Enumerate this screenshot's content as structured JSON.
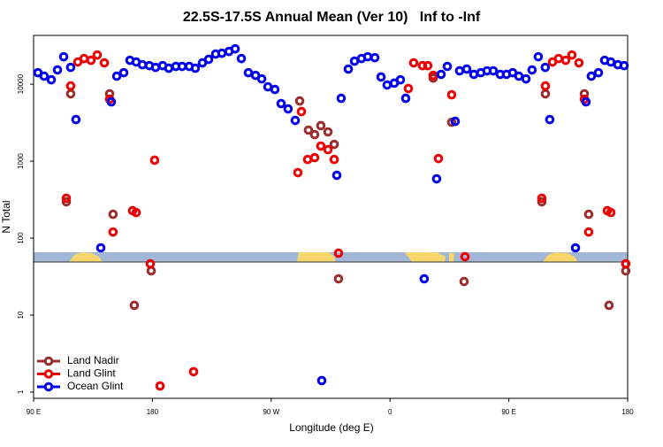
{
  "chart_data": {
    "type": "scatter",
    "title": "22.5S-17.5S Annual Mean (Ver 10)   Inf to -Inf",
    "x_label": "Longitude (deg E)",
    "y_label": "N Total",
    "log_y": true,
    "legend": "bottom-left",
    "xlim": [
      90,
      540
    ],
    "xticks": [
      {
        "value": 90,
        "label": "90 E"
      },
      {
        "value": 180,
        "label": "180"
      },
      {
        "value": 270,
        "label": "90 W"
      },
      {
        "value": 360,
        "label": "0"
      },
      {
        "value": 450,
        "label": "90 E"
      },
      {
        "value": 540,
        "label": "180"
      }
    ],
    "ylim": [
      0.83,
      43000
    ],
    "yticks": [
      1,
      10,
      100,
      1000,
      10000
    ],
    "series": [
      {
        "name": "Land Nadir",
        "color": "#9b2d2d",
        "x": [
          114.8,
          118.1,
          147.6,
          150.2,
          166.3,
          179.1,
          291.6,
          298.2,
          302.9,
          307.6,
          313.0,
          317.7,
          321.0,
          392.7,
          406.7,
          416.1,
          475.0,
          477.7,
          507.2,
          510.5,
          525.9,
          538.6
        ],
        "values": [
          296,
          7480,
          7480,
          204,
          13.4,
          37.6,
          6050,
          2530,
          2210,
          2890,
          2400,
          1650,
          29.6,
          12000,
          3200,
          27.3,
          296,
          7480,
          7480,
          204,
          13.4,
          37.6
        ]
      },
      {
        "name": "Land Glint",
        "color": "#ee0000",
        "x": [
          114.8,
          118.1,
          123.5,
          128.2,
          133.5,
          138.2,
          143.6,
          147.6,
          150.2,
          165.0,
          167.7,
          178.4,
          181.7,
          185.8,
          211.2,
          290.2,
          292.9,
          297.6,
          302.9,
          307.6,
          313.0,
          317.7,
          321.0,
          373.9,
          377.9,
          384.6,
          388.6,
          392.7,
          396.7,
          406.7,
          416.8,
          475.0,
          477.7,
          483.1,
          487.7,
          493.1,
          497.8,
          503.1,
          507.2,
          510.5,
          524.6,
          527.3,
          538.6
        ],
        "values": [
          329,
          9480,
          19400,
          21500,
          20400,
          23900,
          18900,
          6380,
          120,
          227,
          215,
          46.4,
          1030,
          1.2,
          1.84,
          709,
          4400,
          1050,
          1110,
          1570,
          1410,
          1050,
          63.8,
          8770,
          18900,
          17400,
          17400,
          13000,
          1080,
          7280,
          57.4,
          329,
          9480,
          19400,
          21500,
          20400,
          23900,
          18900,
          6380,
          120,
          227,
          215,
          46.4
        ]
      },
      {
        "name": "Ocean Glint",
        "color": "#0000ee",
        "x": [
          93.3,
          98.0,
          103.4,
          108.1,
          112.8,
          118.1,
          122.1,
          140.9,
          148.9,
          153.0,
          158.3,
          163.0,
          167.7,
          172.4,
          177.7,
          182.4,
          187.8,
          192.4,
          197.8,
          202.5,
          207.9,
          212.5,
          217.9,
          222.6,
          227.9,
          232.6,
          238.0,
          242.7,
          247.4,
          252.7,
          258.1,
          262.8,
          267.5,
          272.8,
          277.5,
          282.8,
          288.2,
          308.3,
          319.7,
          323.0,
          328.4,
          333.1,
          338.4,
          343.1,
          348.5,
          353.2,
          357.8,
          363.2,
          367.9,
          371.9,
          385.9,
          395.3,
          398.7,
          403.4,
          409.4,
          412.7,
          418.1,
          423.5,
          428.8,
          433.5,
          438.2,
          443.5,
          448.2,
          452.9,
          457.6,
          463.0,
          467.6,
          472.3,
          477.6,
          481.0,
          500.5,
          508.5,
          512.5,
          517.9,
          522.6,
          527.3,
          532.6,
          537.3
        ],
        "values": [
          14100,
          12700,
          11400,
          15300,
          22700,
          16500,
          3470,
          74.8,
          5890,
          12700,
          14100,
          20400,
          19400,
          17900,
          17400,
          16500,
          17400,
          16100,
          17000,
          17000,
          17000,
          16100,
          18900,
          21000,
          24600,
          25200,
          26600,
          28800,
          21500,
          14100,
          13000,
          11700,
          9240,
          8530,
          5590,
          4770,
          3380,
          1.41,
          655,
          6550,
          15700,
          19900,
          21500,
          22700,
          22100,
          12400,
          9750,
          10300,
          11400,
          6550,
          29.6,
          589,
          13400,
          17000,
          3290,
          14900,
          15700,
          13400,
          14100,
          14900,
          14900,
          13400,
          13400,
          14100,
          12700,
          11700,
          15300,
          22700,
          16500,
          3470,
          74.8,
          5890,
          12700,
          14100,
          20400,
          19400,
          17900,
          17400
        ]
      }
    ]
  }
}
